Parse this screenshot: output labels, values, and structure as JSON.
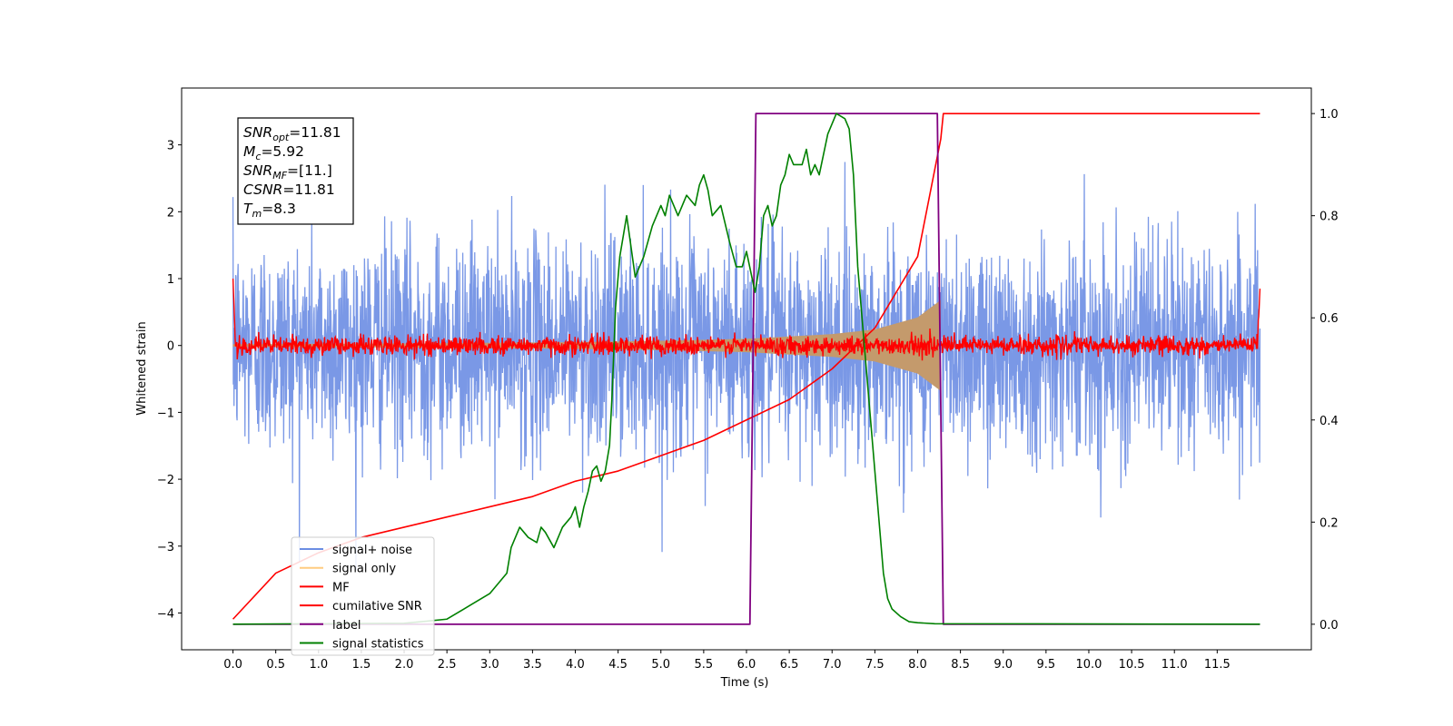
{
  "chart_data": {
    "type": "line",
    "title": "",
    "xlabel": "Time (s)",
    "ylabel": "Whitened strain",
    "xlim": [
      -0.6,
      12.6
    ],
    "ylim": [
      -4.55,
      3.85
    ],
    "y2lim": [
      -0.05,
      1.05
    ],
    "grid": false,
    "legend_position": "lower-left",
    "x_ticks": [
      "0.0",
      "0.5",
      "1.0",
      "1.5",
      "2.0",
      "2.5",
      "3.0",
      "3.5",
      "4.0",
      "4.5",
      "5.0",
      "5.5",
      "6.0",
      "6.5",
      "7.0",
      "7.5",
      "8.0",
      "8.5",
      "9.0",
      "9.5",
      "10.0",
      "10.5",
      "11.0",
      "11.5"
    ],
    "y_ticks": [
      "3",
      "2",
      "1",
      "0",
      "−1",
      "−2",
      "−3",
      "−4"
    ],
    "y2_ticks": [
      "1.0",
      "0.8",
      "0.6",
      "0.4",
      "0.2",
      "0.0"
    ],
    "series": [
      {
        "name": "signal+ noise",
        "color": "#6b8de3",
        "axis": "left",
        "x_range": [
          0,
          12
        ],
        "approx_std": 0.8,
        "extremes": [
          -3.7,
          3.4
        ]
      },
      {
        "name": "signal only",
        "color": "#f5b041",
        "axis": "left",
        "x_range": [
          0,
          8.27
        ],
        "envelope": {
          "x": [
            0,
            2,
            4,
            5,
            6,
            7,
            7.5,
            8,
            8.27
          ],
          "amp": [
            0.02,
            0.03,
            0.05,
            0.07,
            0.1,
            0.17,
            0.24,
            0.42,
            0.68
          ]
        }
      },
      {
        "name": "MF",
        "color": "#ff0000",
        "axis": "left",
        "x_range": [
          0,
          12
        ],
        "approx_std": 0.07,
        "edge_values": [
          1.0,
          0.85
        ]
      },
      {
        "name": "cumilative SNR",
        "color": "#ff0000",
        "axis": "right",
        "x": [
          0,
          0.5,
          1,
          1.5,
          2,
          2.5,
          3,
          3.5,
          4,
          4.5,
          5,
          5.5,
          6,
          6.5,
          7,
          7.5,
          8,
          8.27,
          8.3,
          12
        ],
        "values": [
          0.01,
          0.1,
          0.14,
          0.17,
          0.19,
          0.21,
          0.23,
          0.25,
          0.28,
          0.3,
          0.33,
          0.36,
          0.4,
          0.44,
          0.5,
          0.58,
          0.72,
          0.95,
          1.0,
          1.0
        ]
      },
      {
        "name": "label",
        "color": "#800080",
        "axis": "right",
        "x": [
          0,
          6.04,
          6.11,
          8.23,
          8.3,
          12
        ],
        "values": [
          0,
          0,
          1,
          1,
          0,
          0
        ]
      },
      {
        "name": "signal statistics",
        "color": "#008000",
        "axis": "right",
        "x": [
          0,
          2.0,
          2.2,
          2.5,
          2.8,
          3.0,
          3.1,
          3.2,
          3.25,
          3.35,
          3.45,
          3.55,
          3.6,
          3.65,
          3.75,
          3.85,
          3.9,
          3.95,
          4.0,
          4.05,
          4.1,
          4.15,
          4.2,
          4.25,
          4.3,
          4.35,
          4.4,
          4.43,
          4.47,
          4.52,
          4.6,
          4.7,
          4.8,
          4.9,
          5.0,
          5.05,
          5.1,
          5.2,
          5.3,
          5.4,
          5.45,
          5.5,
          5.55,
          5.6,
          5.7,
          5.8,
          5.88,
          5.95,
          6.0,
          6.05,
          6.1,
          6.15,
          6.2,
          6.25,
          6.3,
          6.35,
          6.4,
          6.45,
          6.5,
          6.55,
          6.6,
          6.65,
          6.7,
          6.75,
          6.8,
          6.85,
          6.9,
          6.95,
          7.0,
          7.05,
          7.1,
          7.15,
          7.2,
          7.25,
          7.3,
          7.35,
          7.4,
          7.45,
          7.5,
          7.55,
          7.6,
          7.65,
          7.7,
          7.8,
          7.9,
          8.0,
          8.2,
          12
        ],
        "values": [
          0.0,
          0.002,
          0.005,
          0.01,
          0.04,
          0.06,
          0.08,
          0.1,
          0.15,
          0.19,
          0.17,
          0.16,
          0.19,
          0.18,
          0.15,
          0.19,
          0.2,
          0.21,
          0.23,
          0.19,
          0.23,
          0.26,
          0.3,
          0.31,
          0.28,
          0.3,
          0.35,
          0.45,
          0.62,
          0.72,
          0.8,
          0.68,
          0.72,
          0.78,
          0.82,
          0.8,
          0.84,
          0.8,
          0.84,
          0.82,
          0.86,
          0.88,
          0.85,
          0.8,
          0.82,
          0.75,
          0.7,
          0.7,
          0.73,
          0.69,
          0.65,
          0.7,
          0.8,
          0.82,
          0.78,
          0.8,
          0.86,
          0.88,
          0.92,
          0.9,
          0.9,
          0.9,
          0.93,
          0.88,
          0.9,
          0.88,
          0.92,
          0.96,
          0.98,
          1.0,
          0.995,
          0.99,
          0.97,
          0.88,
          0.7,
          0.6,
          0.5,
          0.4,
          0.3,
          0.2,
          0.1,
          0.05,
          0.03,
          0.015,
          0.005,
          0.003,
          0.001,
          0.0
        ]
      }
    ],
    "annotations": [
      {
        "symbol": "SNR",
        "subscript": "opt",
        "value": "=11.81"
      },
      {
        "symbol": "M",
        "subscript": "c",
        "value": "=5.92"
      },
      {
        "symbol": "SNR",
        "subscript": "MF",
        "value": "=[11.]"
      },
      {
        "symbol": "CSNR",
        "subscript": "",
        "value": "=11.81"
      },
      {
        "symbol": "T",
        "subscript": "m",
        "value": "=8.3"
      }
    ]
  }
}
